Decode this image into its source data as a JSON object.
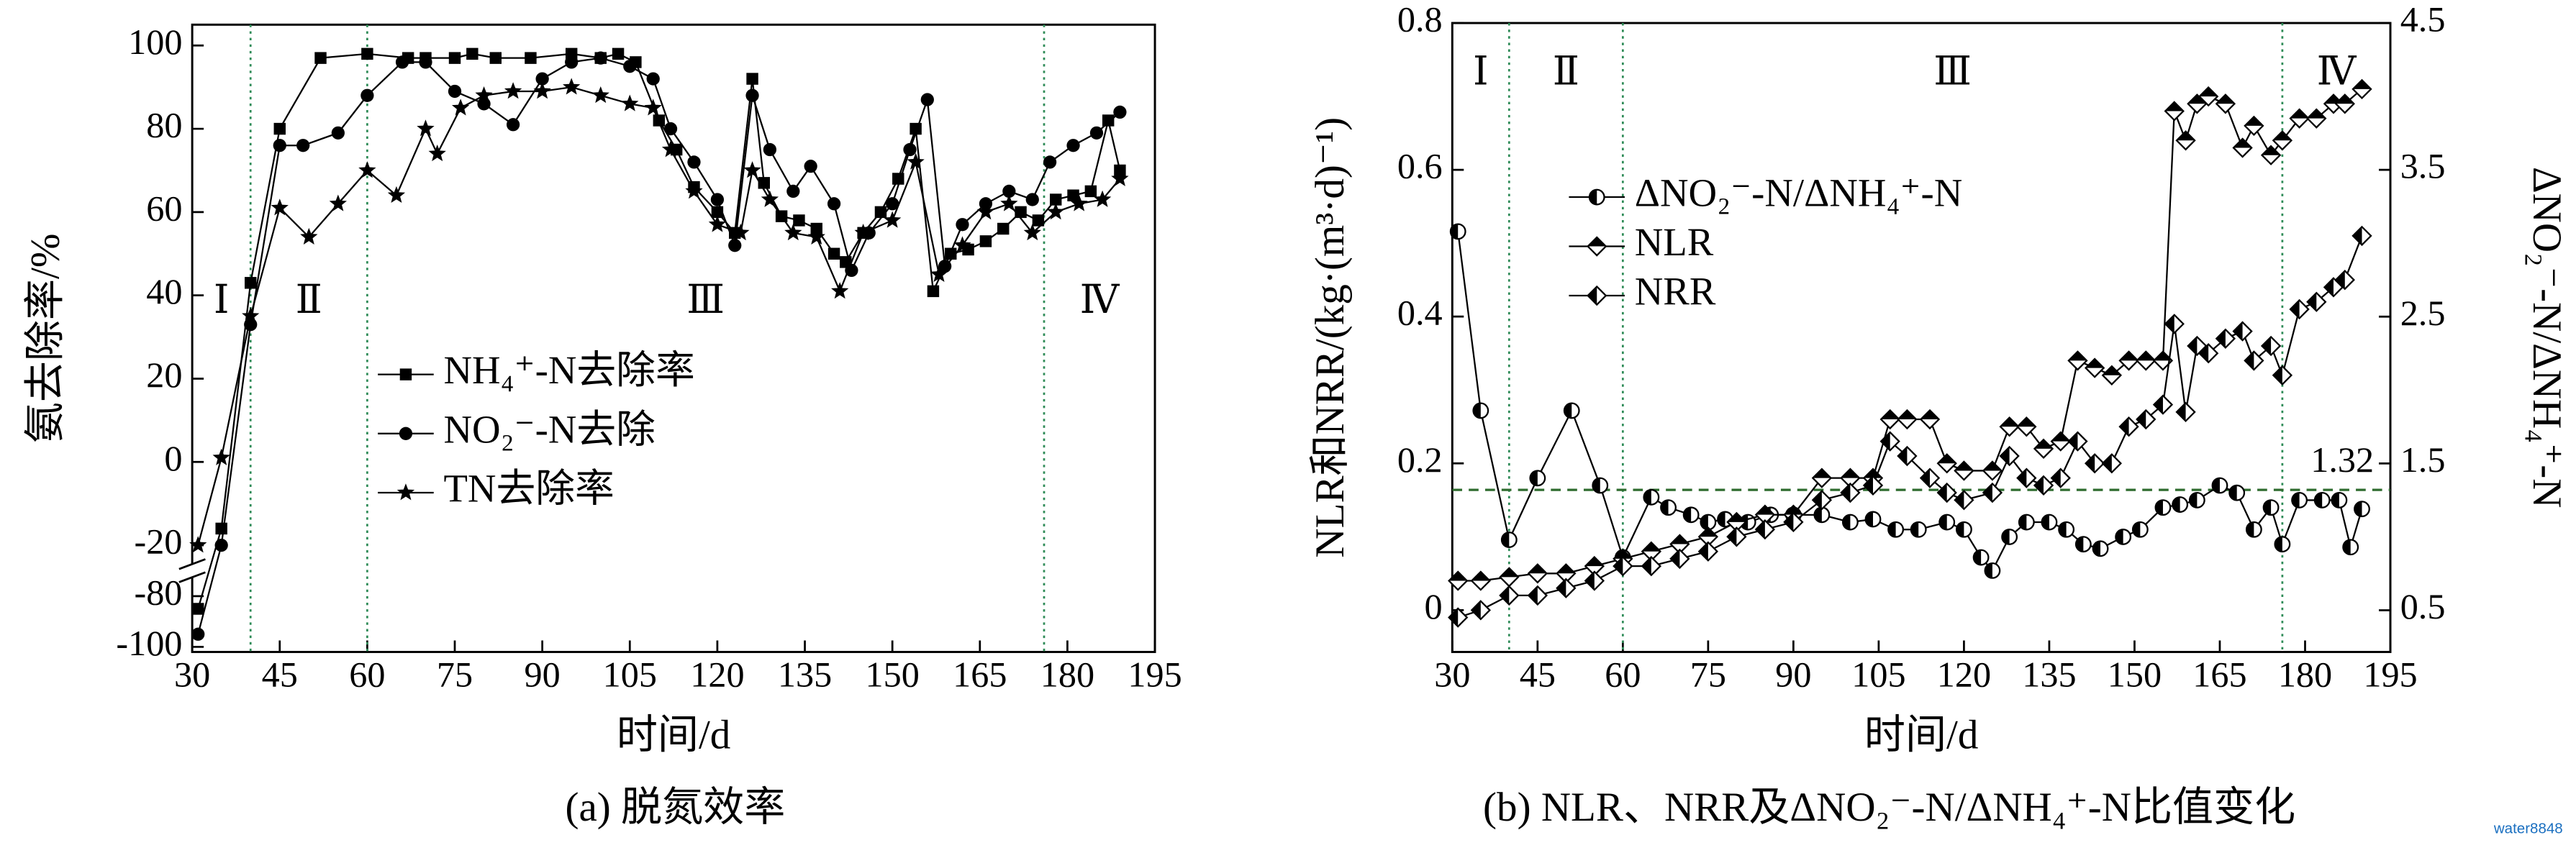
{
  "chart_data": [
    {
      "type": "line",
      "caption": "(a) 脱氮效率",
      "xlabel": "时间/d",
      "ylabel": "氨去除率/%",
      "xlim": [
        30,
        195
      ],
      "xticks": [
        30,
        45,
        60,
        75,
        90,
        105,
        120,
        135,
        150,
        165,
        180,
        195
      ],
      "ylim": [
        -102,
        105
      ],
      "ybreak": [
        -80,
        -20
      ],
      "yticks": [
        -100,
        -80,
        -20,
        0,
        20,
        40,
        60,
        80,
        100
      ],
      "phases": [
        "Ⅰ",
        "Ⅱ",
        "Ⅲ",
        "Ⅳ"
      ],
      "phase_lines": [
        40,
        60,
        176
      ],
      "phase_color": "#2e8b57",
      "series": [
        {
          "name": "NH₄⁺-N去除率",
          "color": "#000",
          "marker": "square",
          "x": [
            31,
            35,
            40,
            45,
            52,
            60,
            67,
            70,
            75,
            78,
            82,
            88,
            95,
            100,
            103,
            106,
            110,
            113,
            116,
            120,
            123,
            126,
            128,
            131,
            134,
            137,
            140,
            142,
            145,
            148,
            151,
            154,
            157,
            160,
            163,
            166,
            169,
            172,
            175,
            178,
            181,
            184,
            187,
            189
          ],
          "values": [
            -85,
            -16,
            43,
            80,
            97,
            98,
            97,
            97,
            97,
            98,
            97,
            97,
            98,
            97,
            98,
            96,
            82,
            75,
            66,
            60,
            55,
            92,
            67,
            59,
            58,
            56,
            50,
            48,
            55,
            60,
            68,
            80,
            41,
            50,
            51,
            53,
            56,
            60,
            58,
            63,
            64,
            65,
            82,
            70
          ]
        },
        {
          "name": "NO₂⁻-N去除",
          "color": "#000",
          "marker": "circle",
          "x": [
            31,
            35,
            40,
            45,
            49,
            55,
            60,
            66,
            70,
            75,
            80,
            85,
            90,
            95,
            100,
            105,
            109,
            112,
            116,
            120,
            123,
            126,
            129,
            133,
            136,
            140,
            143,
            146,
            150,
            153,
            156,
            159,
            162,
            166,
            170,
            174,
            177,
            181,
            185,
            189
          ],
          "values": [
            -95,
            -20,
            33,
            76,
            76,
            79,
            88,
            96,
            96,
            89,
            86,
            81,
            92,
            96,
            97,
            95,
            92,
            80,
            72,
            63,
            52,
            88,
            75,
            65,
            71,
            62,
            46,
            55,
            62,
            75,
            87,
            47,
            57,
            62,
            65,
            63,
            72,
            76,
            79,
            84
          ]
        },
        {
          "name": "TN去除率",
          "color": "#000",
          "marker": "star",
          "x": [
            31,
            35,
            40,
            45,
            50,
            55,
            60,
            65,
            70,
            72,
            76,
            80,
            85,
            90,
            95,
            100,
            105,
            109,
            112,
            116,
            120,
            124,
            126,
            129,
            133,
            137,
            141,
            145,
            150,
            154,
            158,
            162,
            166,
            170,
            174,
            178,
            182,
            186,
            189
          ],
          "values": [
            -20,
            1,
            35,
            61,
            54,
            62,
            70,
            64,
            80,
            74,
            85,
            88,
            89,
            89,
            90,
            88,
            86,
            85,
            75,
            65,
            57,
            55,
            70,
            63,
            55,
            54,
            41,
            55,
            58,
            72,
            45,
            52,
            60,
            62,
            55,
            60,
            62,
            63,
            68
          ]
        }
      ]
    },
    {
      "type": "line",
      "caption": "(b) NLR、NRR及ΔNO₂⁻-N/ΔNH₄⁺-N比值变化",
      "xlabel": "时间/d",
      "ylabel": "NLR和NRR/(kg·(m³·d)⁻¹)",
      "y2label": "ΔNO₂⁻-N/ΔNH₄⁺-N",
      "xlim": [
        30,
        195
      ],
      "xticks": [
        30,
        45,
        60,
        75,
        90,
        105,
        120,
        135,
        150,
        165,
        180,
        195
      ],
      "ylim": [
        -0.057,
        0.8
      ],
      "yticks": [
        0,
        0.2,
        0.4,
        0.6,
        0.8
      ],
      "y2lim": [
        0.216,
        4.5
      ],
      "y2ticks": [
        0.5,
        1.5,
        2.5,
        3.5,
        4.5
      ],
      "hline": {
        "value": 1.32,
        "axis": "y2",
        "color": "#2e6b2e"
      },
      "phases": [
        "Ⅰ",
        "Ⅱ",
        "Ⅲ",
        "Ⅳ"
      ],
      "phase_lines": [
        40,
        60,
        176
      ],
      "phase_color": "#2e8b57",
      "series": [
        {
          "name": "ΔNO₂⁻-N/ΔNH₄⁺-N",
          "color": "#000",
          "marker": "half-circle",
          "axis": "y2",
          "x": [
            31,
            35,
            40,
            45,
            51,
            56,
            60,
            65,
            68,
            72,
            75,
            78,
            82,
            86,
            90,
            95,
            100,
            104,
            108,
            112,
            117,
            120,
            123,
            125,
            128,
            131,
            135,
            138,
            141,
            144,
            148,
            151,
            155,
            158,
            161,
            165,
            168,
            171,
            174,
            176,
            179,
            183,
            186,
            188,
            190
          ],
          "values": [
            3.08,
            1.86,
            0.98,
            1.4,
            1.86,
            1.35,
            0.86,
            1.27,
            1.2,
            1.15,
            1.1,
            1.12,
            1.1,
            1.15,
            1.15,
            1.15,
            1.1,
            1.12,
            1.05,
            1.05,
            1.1,
            1.05,
            0.86,
            0.77,
            1.0,
            1.1,
            1.1,
            1.05,
            0.95,
            0.92,
            1.0,
            1.05,
            1.2,
            1.22,
            1.25,
            1.35,
            1.3,
            1.05,
            1.2,
            0.95,
            1.25,
            1.25,
            1.25,
            0.93,
            1.19
          ]
        },
        {
          "name": "NLR",
          "color": "#000",
          "marker": "diamond-top",
          "x": [
            31,
            35,
            40,
            45,
            50,
            55,
            60,
            65,
            70,
            75,
            80,
            85,
            90,
            95,
            100,
            104,
            107,
            110,
            114,
            117,
            120,
            125,
            128,
            131,
            134,
            137,
            140,
            143,
            146,
            149,
            152,
            155,
            157,
            159,
            161,
            163,
            166,
            169,
            171,
            174,
            176,
            179,
            182,
            185,
            187,
            190
          ],
          "values": [
            0.04,
            0.04,
            0.045,
            0.05,
            0.05,
            0.06,
            0.07,
            0.08,
            0.09,
            0.1,
            0.12,
            0.13,
            0.13,
            0.18,
            0.18,
            0.18,
            0.26,
            0.26,
            0.26,
            0.2,
            0.19,
            0.19,
            0.25,
            0.25,
            0.22,
            0.23,
            0.34,
            0.33,
            0.32,
            0.34,
            0.34,
            0.34,
            0.68,
            0.64,
            0.69,
            0.7,
            0.69,
            0.63,
            0.66,
            0.62,
            0.64,
            0.67,
            0.67,
            0.69,
            0.69,
            0.71
          ]
        },
        {
          "name": "NRR",
          "color": "#000",
          "marker": "diamond-half",
          "x": [
            31,
            35,
            40,
            45,
            50,
            55,
            60,
            65,
            70,
            75,
            80,
            85,
            90,
            95,
            100,
            104,
            107,
            110,
            114,
            117,
            120,
            125,
            128,
            131,
            134,
            137,
            140,
            143,
            146,
            149,
            152,
            155,
            157,
            159,
            161,
            163,
            166,
            169,
            171,
            174,
            176,
            179,
            182,
            185,
            187,
            190
          ],
          "values": [
            -0.01,
            0,
            0.02,
            0.02,
            0.03,
            0.04,
            0.06,
            0.06,
            0.07,
            0.08,
            0.1,
            0.11,
            0.12,
            0.15,
            0.16,
            0.17,
            0.23,
            0.21,
            0.18,
            0.16,
            0.15,
            0.16,
            0.21,
            0.18,
            0.17,
            0.18,
            0.23,
            0.2,
            0.2,
            0.25,
            0.26,
            0.28,
            0.39,
            0.27,
            0.36,
            0.35,
            0.37,
            0.38,
            0.34,
            0.36,
            0.32,
            0.41,
            0.42,
            0.44,
            0.45,
            0.51
          ]
        }
      ]
    }
  ],
  "watermark": "water8848"
}
